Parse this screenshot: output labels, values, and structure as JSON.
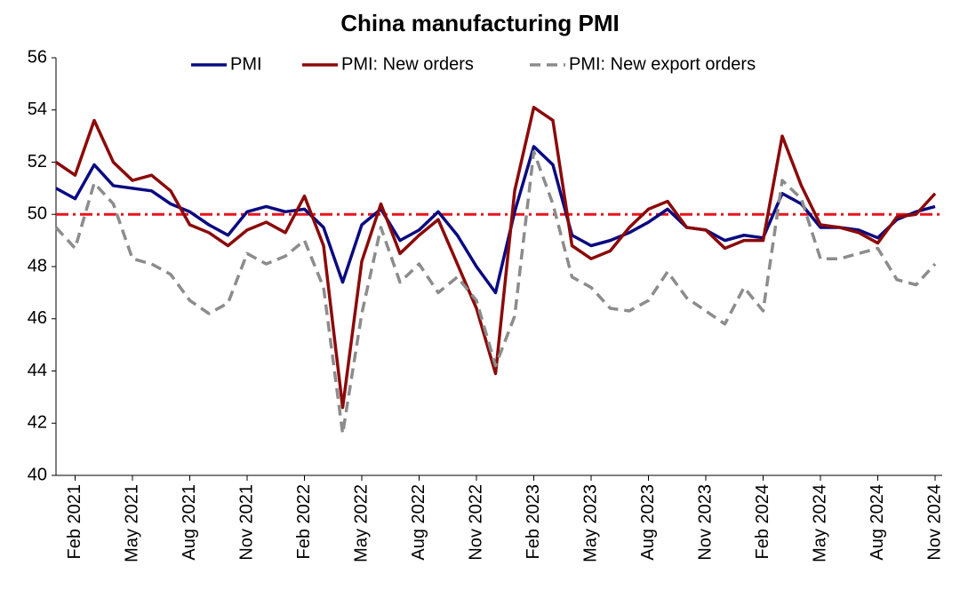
{
  "chart_data": {
    "type": "line",
    "title": "China manufacturing PMI",
    "categories": [
      null,
      "Feb 2021",
      null,
      null,
      "May 2021",
      null,
      null,
      "Aug 2021",
      null,
      null,
      "Nov 2021",
      null,
      null,
      "Feb 2022",
      null,
      null,
      "May 2022",
      null,
      null,
      "Aug 2022",
      null,
      null,
      "Nov 2022",
      null,
      null,
      "Feb 2023",
      null,
      null,
      "May 2023",
      null,
      null,
      "Aug 2023",
      null,
      null,
      "Nov 2023",
      null,
      null,
      "Feb 2024",
      null,
      null,
      "May 2024",
      null,
      null,
      "Aug 2024",
      null,
      null,
      "Nov 2024"
    ],
    "series": [
      {
        "name": "PMI",
        "color": "#0a0a80",
        "dash": "solid",
        "values": [
          51.0,
          50.6,
          51.9,
          51.1,
          51.0,
          50.9,
          50.4,
          50.1,
          49.6,
          49.2,
          50.1,
          50.3,
          50.1,
          50.2,
          49.5,
          47.4,
          49.6,
          50.2,
          49.0,
          49.4,
          50.1,
          49.2,
          48.0,
          47.0,
          50.1,
          52.6,
          51.9,
          49.2,
          48.8,
          49.0,
          49.3,
          49.7,
          50.2,
          49.5,
          49.4,
          49.0,
          49.2,
          49.1,
          50.8,
          50.4,
          49.5,
          49.5,
          49.4,
          49.1,
          49.8,
          50.1,
          50.3
        ]
      },
      {
        "name": "PMI: New orders",
        "color": "#8b0a0a",
        "dash": "solid",
        "values": [
          52.0,
          51.5,
          53.6,
          52.0,
          51.3,
          51.5,
          50.9,
          49.6,
          49.3,
          48.8,
          49.4,
          49.7,
          49.3,
          50.7,
          48.8,
          42.6,
          48.2,
          50.4,
          48.5,
          49.2,
          49.8,
          48.1,
          46.4,
          43.9,
          50.9,
          54.1,
          53.6,
          48.8,
          48.3,
          48.6,
          49.5,
          50.2,
          50.5,
          49.5,
          49.4,
          48.7,
          49.0,
          49.0,
          53.0,
          51.1,
          49.6,
          49.5,
          49.3,
          48.9,
          49.9,
          50.0,
          50.8
        ]
      },
      {
        "name": "PMI: New export orders",
        "color": "#8c8c8c",
        "dash": "dashed",
        "values": [
          49.5,
          48.7,
          51.2,
          50.4,
          48.3,
          48.1,
          47.7,
          46.7,
          46.2,
          46.6,
          48.5,
          48.1,
          48.4,
          49.0,
          47.2,
          41.6,
          46.2,
          49.5,
          47.4,
          48.1,
          47.0,
          47.6,
          46.7,
          44.2,
          46.1,
          52.4,
          50.4,
          47.6,
          47.2,
          46.4,
          46.3,
          46.7,
          47.8,
          46.8,
          46.3,
          45.8,
          47.2,
          46.3,
          51.3,
          50.6,
          48.3,
          48.3,
          48.5,
          48.7,
          47.5,
          47.3,
          48.1
        ]
      }
    ],
    "hline": {
      "value": 50,
      "color": "#e8141e"
    },
    "ylim": [
      40,
      56
    ],
    "yticks": [
      40,
      42,
      44,
      46,
      48,
      50,
      52,
      54,
      56
    ],
    "legend": "top"
  }
}
